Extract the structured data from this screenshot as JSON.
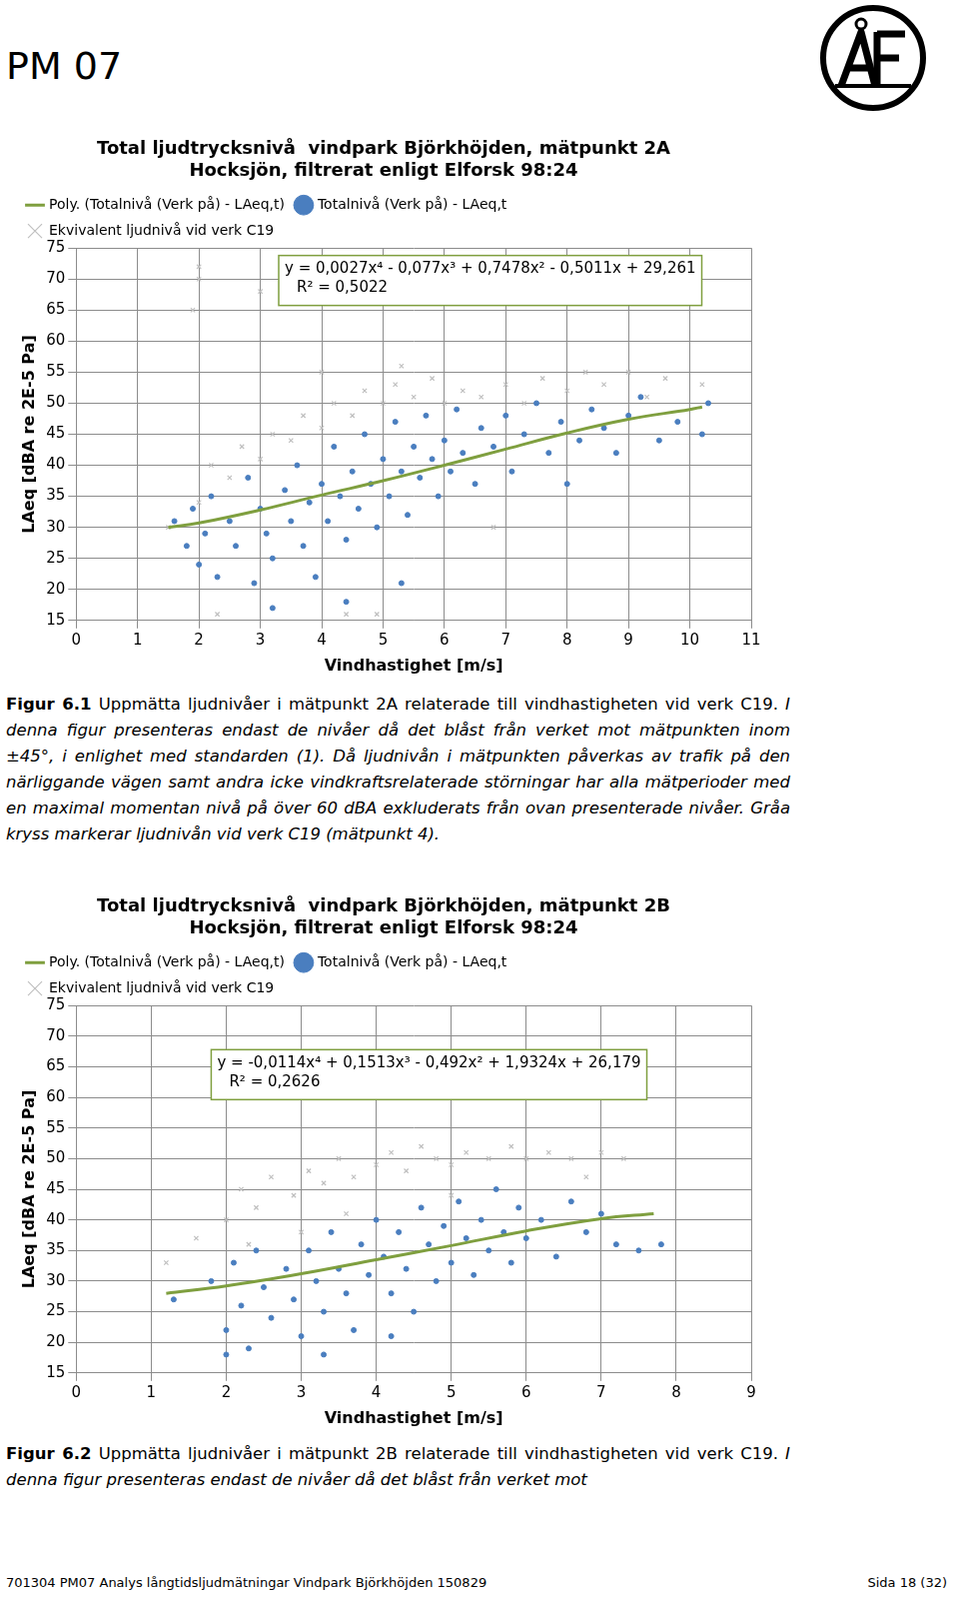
{
  "header": {
    "title": "PM 07"
  },
  "chart_data": [
    {
      "type": "scatter",
      "title": [
        "Total ljudtrycksnivå  vindpark Björkhöjden, mätpunkt 2A",
        "Hocksjön, filtrerat enligt Elforsk 98:24"
      ],
      "x_label": "Vindhastighet [m/s]",
      "y_label": "LAeq [dBA re 2E-5 Pa]",
      "annotations": [
        "y = 0,0027x⁴ - 0,077x³ + 0,7478x² - 0,5011x + 29,261",
        "R² = 0,5022"
      ],
      "xlim": [
        0,
        11
      ],
      "xticks": [
        0,
        1,
        2,
        3,
        4,
        5,
        6,
        7,
        8,
        9,
        10,
        11
      ],
      "ylim": [
        15,
        75
      ],
      "yticks": [
        15,
        20,
        25,
        30,
        35,
        40,
        45,
        50,
        55,
        60,
        65,
        70,
        75
      ],
      "grid": true,
      "legend": "top-left",
      "series": [
        {
          "name": "Ekvivalent ljudnivå vid verk C19",
          "type": "scatter",
          "marker": "x",
          "color": "#bfbfbf",
          "values": [
            [
              1.5,
              30
            ],
            [
              2.0,
              34
            ],
            [
              2.2,
              40
            ],
            [
              2.5,
              38
            ],
            [
              2.7,
              43
            ],
            [
              3.0,
              41
            ],
            [
              3.2,
              45
            ],
            [
              3.5,
              44
            ],
            [
              3.7,
              48
            ],
            [
              4.0,
              46
            ],
            [
              4.2,
              50
            ],
            [
              4.5,
              48
            ],
            [
              4.7,
              52
            ],
            [
              5.0,
              50
            ],
            [
              5.2,
              53
            ],
            [
              5.5,
              51
            ],
            [
              5.8,
              54
            ],
            [
              6.0,
              50
            ],
            [
              6.3,
              52
            ],
            [
              6.6,
              51
            ],
            [
              7.0,
              53
            ],
            [
              7.3,
              50
            ],
            [
              7.6,
              54
            ],
            [
              8.0,
              52
            ],
            [
              8.3,
              55
            ],
            [
              8.6,
              53
            ],
            [
              9.0,
              55
            ],
            [
              9.3,
              51
            ],
            [
              9.6,
              54
            ],
            [
              10.2,
              53
            ],
            [
              2.0,
              70
            ],
            [
              2.0,
              72
            ],
            [
              3.0,
              68
            ],
            [
              1.9,
              65
            ],
            [
              5.3,
              56
            ],
            [
              4.4,
              16
            ],
            [
              4.9,
              16
            ],
            [
              2.3,
              16
            ],
            [
              6.8,
              30
            ],
            [
              4.0,
              55
            ]
          ]
        },
        {
          "name": "Totalnivå (Verk på) - LAeq,t",
          "type": "scatter",
          "marker": "circle",
          "color": "#4a7ebf",
          "values": [
            [
              1.6,
              31
            ],
            [
              1.8,
              27
            ],
            [
              1.9,
              33
            ],
            [
              2.0,
              24
            ],
            [
              2.1,
              29
            ],
            [
              2.2,
              35
            ],
            [
              2.3,
              22
            ],
            [
              2.5,
              31
            ],
            [
              2.6,
              27
            ],
            [
              2.8,
              38
            ],
            [
              2.9,
              21
            ],
            [
              3.0,
              33
            ],
            [
              3.1,
              29
            ],
            [
              3.2,
              25
            ],
            [
              3.4,
              36
            ],
            [
              3.5,
              31
            ],
            [
              3.6,
              40
            ],
            [
              3.7,
              27
            ],
            [
              3.8,
              34
            ],
            [
              3.9,
              22
            ],
            [
              4.0,
              37
            ],
            [
              4.1,
              31
            ],
            [
              4.2,
              43
            ],
            [
              4.3,
              35
            ],
            [
              4.4,
              28
            ],
            [
              4.5,
              39
            ],
            [
              4.6,
              33
            ],
            [
              4.7,
              45
            ],
            [
              4.8,
              37
            ],
            [
              4.9,
              30
            ],
            [
              5.0,
              41
            ],
            [
              5.1,
              35
            ],
            [
              5.2,
              47
            ],
            [
              5.3,
              39
            ],
            [
              5.4,
              32
            ],
            [
              5.5,
              43
            ],
            [
              5.6,
              38
            ],
            [
              5.7,
              48
            ],
            [
              5.8,
              41
            ],
            [
              5.9,
              35
            ],
            [
              6.0,
              44
            ],
            [
              6.1,
              39
            ],
            [
              6.2,
              49
            ],
            [
              6.3,
              42
            ],
            [
              6.5,
              37
            ],
            [
              6.6,
              46
            ],
            [
              6.8,
              43
            ],
            [
              7.0,
              48
            ],
            [
              7.1,
              39
            ],
            [
              7.3,
              45
            ],
            [
              7.5,
              50
            ],
            [
              7.7,
              42
            ],
            [
              7.9,
              47
            ],
            [
              8.0,
              37
            ],
            [
              8.2,
              44
            ],
            [
              8.4,
              49
            ],
            [
              8.6,
              46
            ],
            [
              8.8,
              42
            ],
            [
              9.0,
              48
            ],
            [
              9.2,
              51
            ],
            [
              9.5,
              44
            ],
            [
              9.8,
              47
            ],
            [
              10.2,
              45
            ],
            [
              10.3,
              50
            ],
            [
              3.2,
              17
            ],
            [
              4.4,
              18
            ],
            [
              5.3,
              21
            ]
          ]
        },
        {
          "name": "Poly. (Totalnivå (Verk på) - LAeq,t)",
          "type": "line",
          "marker": "none",
          "line_style": "solid",
          "color": "#7f9f3f",
          "values": [
            [
              1.5,
              30
            ],
            [
              2,
              30.7
            ],
            [
              3,
              32.8
            ],
            [
              4,
              35.2
            ],
            [
              5,
              37.5
            ],
            [
              6,
              40
            ],
            [
              7,
              42.6
            ],
            [
              8,
              45.2
            ],
            [
              9,
              47.4
            ],
            [
              10,
              49
            ],
            [
              10.2,
              49.4
            ]
          ]
        }
      ]
    },
    {
      "type": "scatter",
      "title": [
        "Total ljudtrycksnivå  vindpark Björkhöjden, mätpunkt 2B",
        "Hocksjön, filtrerat enligt Elforsk 98:24"
      ],
      "x_label": "Vindhastighet [m/s]",
      "y_label": "LAeq [dBA re 2E-5 Pa]",
      "annotations": [
        "y = -0,0114x⁴ + 0,1513x³ - 0,492x² + 1,9324x + 26,179",
        "R² = 0,2626"
      ],
      "xlim": [
        0,
        9
      ],
      "xticks": [
        0,
        1,
        2,
        3,
        4,
        5,
        6,
        7,
        8,
        9
      ],
      "ylim": [
        15,
        75
      ],
      "yticks": [
        15,
        20,
        25,
        30,
        35,
        40,
        45,
        50,
        55,
        60,
        65,
        70,
        75
      ],
      "grid": true,
      "legend": "top-left",
      "series": [
        {
          "name": "Ekvivalent ljudnivå vid verk C19",
          "type": "scatter",
          "marker": "x",
          "color": "#bfbfbf",
          "values": [
            [
              1.2,
              33
            ],
            [
              1.6,
              37
            ],
            [
              2.0,
              40
            ],
            [
              2.2,
              45
            ],
            [
              2.4,
              42
            ],
            [
              2.6,
              47
            ],
            [
              2.9,
              44
            ],
            [
              3.1,
              48
            ],
            [
              3.3,
              46
            ],
            [
              3.5,
              50
            ],
            [
              3.7,
              47
            ],
            [
              4.0,
              49
            ],
            [
              4.2,
              51
            ],
            [
              4.4,
              48
            ],
            [
              4.6,
              52
            ],
            [
              4.8,
              50
            ],
            [
              5.0,
              49
            ],
            [
              5.2,
              51
            ],
            [
              5.5,
              50
            ],
            [
              5.8,
              52
            ],
            [
              6.0,
              50
            ],
            [
              6.3,
              51
            ],
            [
              6.6,
              50
            ],
            [
              7.0,
              51
            ],
            [
              7.3,
              50
            ],
            [
              2.3,
              36
            ],
            [
              3.0,
              38
            ],
            [
              3.6,
              41
            ],
            [
              5.0,
              44
            ],
            [
              6.8,
              47
            ]
          ]
        },
        {
          "name": "Totalnivå (Verk på) - LAeq,t",
          "type": "scatter",
          "marker": "circle",
          "color": "#4a7ebf",
          "values": [
            [
              1.3,
              27
            ],
            [
              1.8,
              30
            ],
            [
              2.0,
              22
            ],
            [
              2.1,
              33
            ],
            [
              2.2,
              26
            ],
            [
              2.3,
              19
            ],
            [
              2.4,
              35
            ],
            [
              2.5,
              29
            ],
            [
              2.6,
              24
            ],
            [
              2.8,
              32
            ],
            [
              2.9,
              27
            ],
            [
              3.0,
              21
            ],
            [
              3.1,
              35
            ],
            [
              3.2,
              30
            ],
            [
              3.3,
              25
            ],
            [
              3.4,
              38
            ],
            [
              3.5,
              32
            ],
            [
              3.6,
              28
            ],
            [
              3.7,
              22
            ],
            [
              3.8,
              36
            ],
            [
              3.9,
              31
            ],
            [
              4.0,
              40
            ],
            [
              4.1,
              34
            ],
            [
              4.2,
              28
            ],
            [
              4.3,
              38
            ],
            [
              4.4,
              32
            ],
            [
              4.5,
              25
            ],
            [
              4.6,
              42
            ],
            [
              4.7,
              36
            ],
            [
              4.8,
              30
            ],
            [
              4.9,
              39
            ],
            [
              5.0,
              33
            ],
            [
              5.1,
              43
            ],
            [
              5.2,
              37
            ],
            [
              5.3,
              31
            ],
            [
              5.4,
              40
            ],
            [
              5.5,
              35
            ],
            [
              5.6,
              45
            ],
            [
              5.7,
              38
            ],
            [
              5.8,
              33
            ],
            [
              5.9,
              42
            ],
            [
              6.0,
              37
            ],
            [
              6.2,
              40
            ],
            [
              6.4,
              34
            ],
            [
              6.6,
              43
            ],
            [
              6.8,
              38
            ],
            [
              7.0,
              41
            ],
            [
              7.2,
              36
            ],
            [
              7.5,
              35
            ],
            [
              7.8,
              36
            ],
            [
              2.0,
              18
            ],
            [
              3.3,
              18
            ],
            [
              4.2,
              21
            ]
          ]
        },
        {
          "name": "Poly. (Totalnivå (Verk på) - LAeq,t)",
          "type": "line",
          "marker": "none",
          "line_style": "solid",
          "color": "#7f9f3f",
          "values": [
            [
              1.2,
              28
            ],
            [
              2,
              29.2
            ],
            [
              3,
              31.2
            ],
            [
              4,
              33.5
            ],
            [
              5,
              35.8
            ],
            [
              6,
              38.2
            ],
            [
              7,
              40.2
            ],
            [
              7.7,
              41
            ]
          ]
        }
      ]
    }
  ],
  "captions": [
    {
      "label": "Figur 6.1",
      "text": " Uppmätta ljudnivåer i mätpunkt 2A relaterade till vindhastigheten vid verk C19.",
      "note": " I denna figur presenteras endast de nivåer då det blåst från verket mot mätpunkten inom ±45°, i enlighet med standarden (1). Då ljudnivån i mätpunkten påverkas av trafik på den närliggande vägen samt andra icke vindkraftsrelaterade störningar har alla mätperioder med en maximal momentan nivå på över 60 dBA exkluderats från ovan presenterade nivåer. Gråa kryss markerar ljudnivån vid verk C19 (mätpunkt 4)."
    },
    {
      "label": "Figur 6.2",
      "text": " Uppmätta ljudnivåer i mätpunkt 2B relaterade till vindhastigheten vid verk C19.",
      "note": " I denna figur presenteras endast de nivåer då det blåst från verket mot"
    }
  ],
  "footer": {
    "left": "701304 PM07 Analys långtidsljudmätningar Vindpark Björkhöjden 150829",
    "right": "Sida 18 (32)"
  }
}
